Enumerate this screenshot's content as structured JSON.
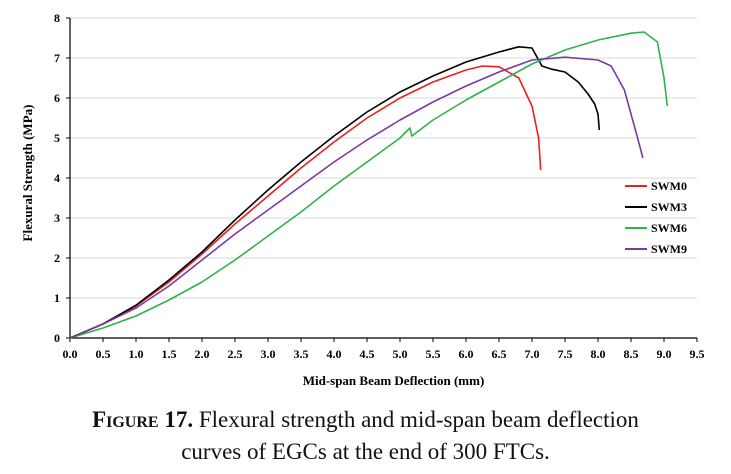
{
  "chart_data": {
    "type": "line",
    "xlabel": "Mid-span Beam Deflection (mm)",
    "ylabel": "Flexural Strength (MPa)",
    "xlim": [
      0,
      9.5
    ],
    "ylim": [
      0,
      8
    ],
    "xticks": [
      "0.0",
      "0.5",
      "1.0",
      "1.5",
      "2.0",
      "2.5",
      "3.0",
      "3.5",
      "4.0",
      "4.5",
      "5.0",
      "5.5",
      "6.0",
      "6.5",
      "7.0",
      "7.5",
      "8.0",
      "8.5",
      "9.0",
      "9.5"
    ],
    "yticks": [
      "0",
      "1",
      "2",
      "3",
      "4",
      "5",
      "6",
      "7",
      "8"
    ],
    "legend_position": "right",
    "series": [
      {
        "name": "SWM0",
        "color": "#e8211d",
        "points": [
          [
            0,
            0
          ],
          [
            0.5,
            0.35
          ],
          [
            1.0,
            0.8
          ],
          [
            1.5,
            1.4
          ],
          [
            2.0,
            2.1
          ],
          [
            2.5,
            2.85
          ],
          [
            3.0,
            3.55
          ],
          [
            3.5,
            4.25
          ],
          [
            4.0,
            4.9
          ],
          [
            4.5,
            5.5
          ],
          [
            5.0,
            6.0
          ],
          [
            5.5,
            6.4
          ],
          [
            6.0,
            6.7
          ],
          [
            6.25,
            6.8
          ],
          [
            6.5,
            6.78
          ],
          [
            6.8,
            6.5
          ],
          [
            7.0,
            5.8
          ],
          [
            7.1,
            5.0
          ],
          [
            7.12,
            4.5
          ],
          [
            7.13,
            4.2
          ]
        ]
      },
      {
        "name": "SWM3",
        "color": "#000000",
        "points": [
          [
            0,
            0
          ],
          [
            0.5,
            0.35
          ],
          [
            1.0,
            0.82
          ],
          [
            1.5,
            1.45
          ],
          [
            2.0,
            2.15
          ],
          [
            2.5,
            2.95
          ],
          [
            3.0,
            3.7
          ],
          [
            3.5,
            4.4
          ],
          [
            4.0,
            5.05
          ],
          [
            4.5,
            5.65
          ],
          [
            5.0,
            6.15
          ],
          [
            5.5,
            6.55
          ],
          [
            6.0,
            6.9
          ],
          [
            6.5,
            7.15
          ],
          [
            6.8,
            7.28
          ],
          [
            7.0,
            7.25
          ],
          [
            7.05,
            7.1
          ],
          [
            7.15,
            6.8
          ],
          [
            7.3,
            6.72
          ],
          [
            7.5,
            6.65
          ],
          [
            7.7,
            6.4
          ],
          [
            7.85,
            6.1
          ],
          [
            7.95,
            5.85
          ],
          [
            8.0,
            5.6
          ],
          [
            8.02,
            5.2
          ]
        ]
      },
      {
        "name": "SWM6",
        "color": "#2db34a",
        "points": [
          [
            0,
            0
          ],
          [
            0.5,
            0.25
          ],
          [
            1.0,
            0.55
          ],
          [
            1.5,
            0.95
          ],
          [
            2.0,
            1.4
          ],
          [
            2.5,
            1.95
          ],
          [
            3.0,
            2.55
          ],
          [
            3.5,
            3.15
          ],
          [
            4.0,
            3.8
          ],
          [
            4.5,
            4.4
          ],
          [
            5.0,
            5.0
          ],
          [
            5.15,
            5.25
          ],
          [
            5.18,
            5.05
          ],
          [
            5.5,
            5.45
          ],
          [
            6.0,
            5.95
          ],
          [
            6.5,
            6.4
          ],
          [
            7.0,
            6.85
          ],
          [
            7.5,
            7.2
          ],
          [
            8.0,
            7.45
          ],
          [
            8.5,
            7.62
          ],
          [
            8.7,
            7.65
          ],
          [
            8.9,
            7.4
          ],
          [
            9.0,
            6.5
          ],
          [
            9.05,
            5.8
          ]
        ]
      },
      {
        "name": "SWM9",
        "color": "#7b3aa0",
        "points": [
          [
            0,
            0
          ],
          [
            0.5,
            0.35
          ],
          [
            1.0,
            0.75
          ],
          [
            1.5,
            1.3
          ],
          [
            2.0,
            1.95
          ],
          [
            2.5,
            2.6
          ],
          [
            3.0,
            3.2
          ],
          [
            3.5,
            3.8
          ],
          [
            4.0,
            4.4
          ],
          [
            4.5,
            4.95
          ],
          [
            5.0,
            5.45
          ],
          [
            5.5,
            5.9
          ],
          [
            6.0,
            6.3
          ],
          [
            6.5,
            6.65
          ],
          [
            7.0,
            6.95
          ],
          [
            7.5,
            7.02
          ],
          [
            8.0,
            6.95
          ],
          [
            8.2,
            6.8
          ],
          [
            8.4,
            6.2
          ],
          [
            8.5,
            5.6
          ],
          [
            8.6,
            5.0
          ],
          [
            8.68,
            4.5
          ]
        ]
      }
    ]
  },
  "caption": {
    "label": "Figure 17.",
    "line1": " Flexural strength and mid-span beam deflection",
    "line2": "curves of EGCs at the end of 300 FTCs."
  }
}
